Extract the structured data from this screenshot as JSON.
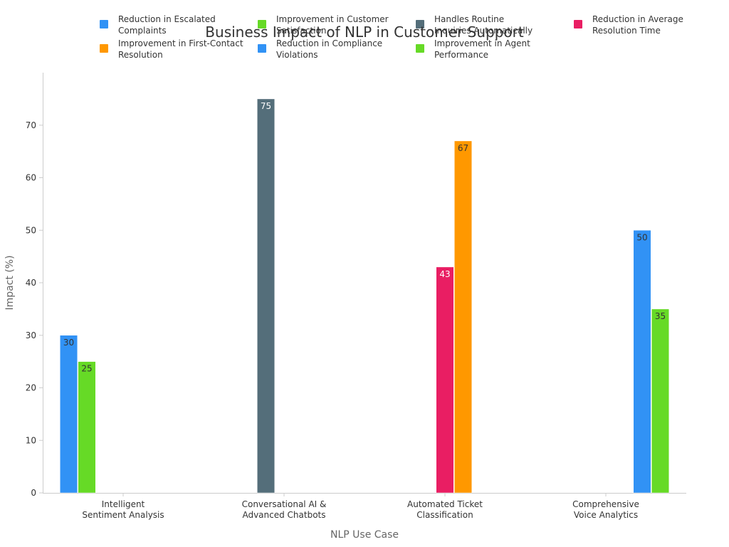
{
  "chart_data": {
    "type": "bar",
    "title": "Business Impact of NLP in Customer Support",
    "xlabel": "NLP Use Case",
    "ylabel": "Impact (%)",
    "ylim": [
      0,
      80
    ],
    "yticks": [
      0,
      10,
      20,
      30,
      40,
      50,
      60,
      70
    ],
    "grid": false,
    "legend_position": "top",
    "categories": [
      [
        "Intelligent",
        "Sentiment Analysis"
      ],
      [
        "Conversational AI &",
        "Advanced Chatbots"
      ],
      [
        "Automated Ticket",
        "Classification"
      ],
      [
        "Comprehensive",
        "Voice Analytics"
      ]
    ],
    "series": [
      {
        "name": [
          "Reduction in Escalated",
          "Complaints"
        ],
        "color": "#3192f5",
        "label_color": "#333333",
        "values": [
          30,
          null,
          null,
          null
        ]
      },
      {
        "name": [
          "Improvement in Customer",
          "Satisfaction"
        ],
        "color": "#66da26",
        "label_color": "#333333",
        "values": [
          25,
          null,
          null,
          null
        ]
      },
      {
        "name": [
          "Handles Routine",
          "Inquiries Automatically"
        ],
        "color": "#546e7a",
        "label_color": "#ffffff",
        "values": [
          null,
          75,
          null,
          null
        ]
      },
      {
        "name": [
          "Reduction in Average",
          "Resolution Time"
        ],
        "color": "#e91e63",
        "label_color": "#ffffff",
        "values": [
          null,
          null,
          43,
          null
        ]
      },
      {
        "name": [
          "Improvement in First-Contact",
          "Resolution"
        ],
        "color": "#ff9800",
        "label_color": "#333333",
        "values": [
          null,
          null,
          67,
          null
        ]
      },
      {
        "name": [
          "Reduction in Compliance",
          "Violations"
        ],
        "color": "#3192f5",
        "label_color": "#333333",
        "values": [
          null,
          null,
          null,
          50
        ]
      },
      {
        "name": [
          "Improvement in Agent",
          "Performance"
        ],
        "color": "#66da26",
        "label_color": "#333333",
        "values": [
          null,
          null,
          null,
          35
        ]
      }
    ]
  }
}
